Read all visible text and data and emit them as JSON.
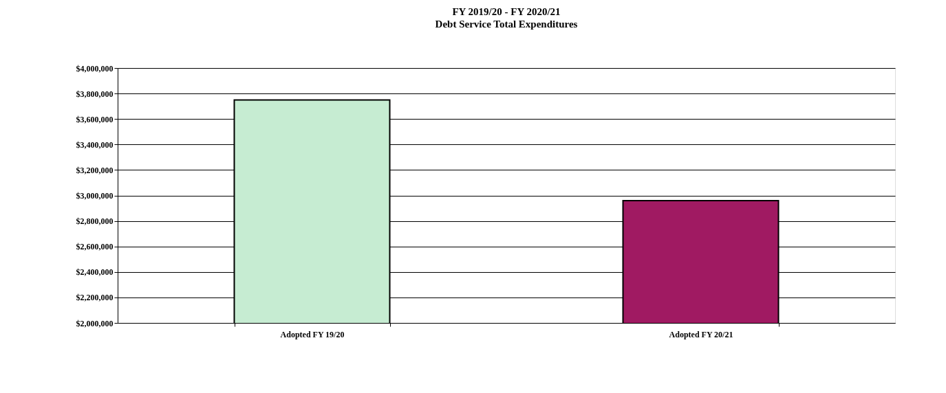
{
  "chart_data": {
    "type": "bar",
    "title": [
      "FY 2019/20 - FY 2020/21",
      "Debt Service Total Expenditures"
    ],
    "categories": [
      "Adopted FY 19/20",
      "Adopted FY 20/21"
    ],
    "values": [
      3750000,
      2960000
    ],
    "colors": [
      "#c6ecd2",
      "#a01a62"
    ],
    "ylim": [
      2000000,
      4000000
    ],
    "yticks": [
      {
        "value": 2000000,
        "label": "$2,000,000"
      },
      {
        "value": 2200000,
        "label": "$2,200,000"
      },
      {
        "value": 2400000,
        "label": "$2,400,000"
      },
      {
        "value": 2600000,
        "label": "$2,600,000"
      },
      {
        "value": 2800000,
        "label": "$2,800,000"
      },
      {
        "value": 3000000,
        "label": "$3,000,000"
      },
      {
        "value": 3200000,
        "label": "$3,200,000"
      },
      {
        "value": 3400000,
        "label": "$3,400,000"
      },
      {
        "value": 3600000,
        "label": "$3,600,000"
      },
      {
        "value": 3800000,
        "label": "$3,800,000"
      },
      {
        "value": 4000000,
        "label": "$4,000,000"
      }
    ],
    "grid": "y"
  }
}
